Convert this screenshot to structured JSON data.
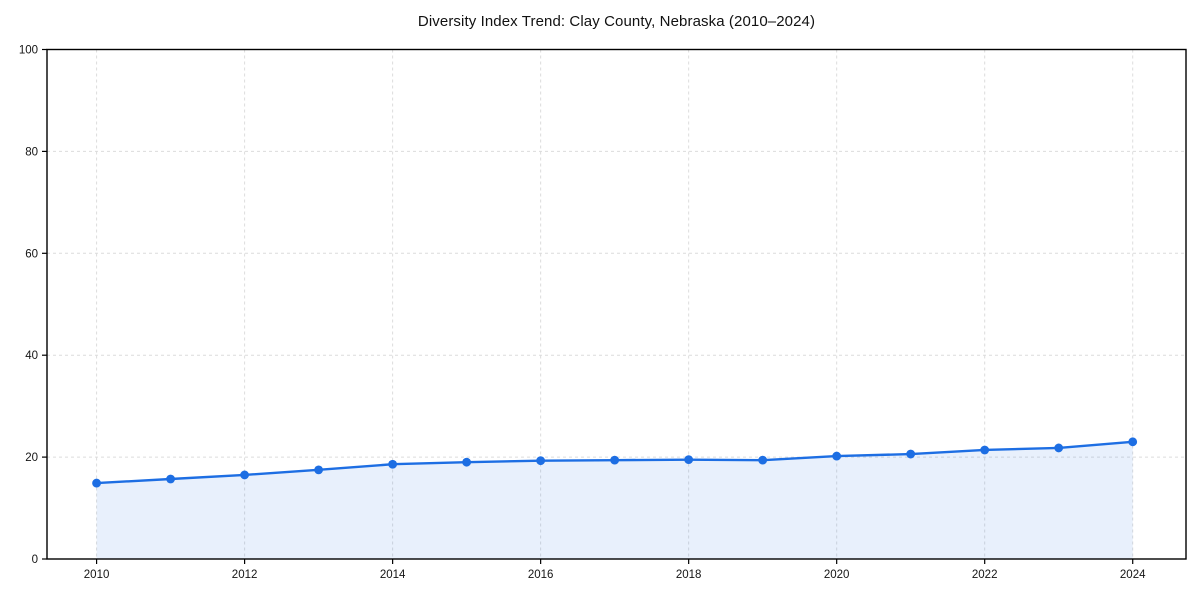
{
  "chart_data": {
    "type": "line",
    "title": "Diversity Index Trend: Clay County, Nebraska (2010–2024)",
    "x": [
      2010,
      2011,
      2012,
      2013,
      2014,
      2015,
      2016,
      2017,
      2018,
      2019,
      2020,
      2021,
      2022,
      2023,
      2024
    ],
    "series": [
      {
        "name": "Diversity Index",
        "values": [
          14.9,
          15.7,
          16.5,
          17.5,
          18.6,
          19.0,
          19.3,
          19.4,
          19.5,
          19.4,
          20.2,
          20.6,
          21.4,
          21.8,
          23.0
        ]
      }
    ],
    "xlabel": "",
    "ylabel": "",
    "xticks": [
      2010,
      2012,
      2014,
      2016,
      2018,
      2020,
      2022,
      2024
    ],
    "yticks": [
      0,
      20,
      40,
      60,
      80,
      100
    ],
    "xlim": [
      2009.33,
      2024.72
    ],
    "ylim": [
      0,
      100
    ],
    "grid": true,
    "grid_style": "dashed",
    "legend": "none",
    "marker": "circle",
    "area_fill": true,
    "colors": {
      "line": "#1d6ee3",
      "marker": "#1d6ee3",
      "fill": "rgba(29,110,227,0.10)",
      "grid": "#dcdcdc",
      "spine": "#000000",
      "tick_text": "#141414",
      "background": "#ffffff"
    }
  }
}
